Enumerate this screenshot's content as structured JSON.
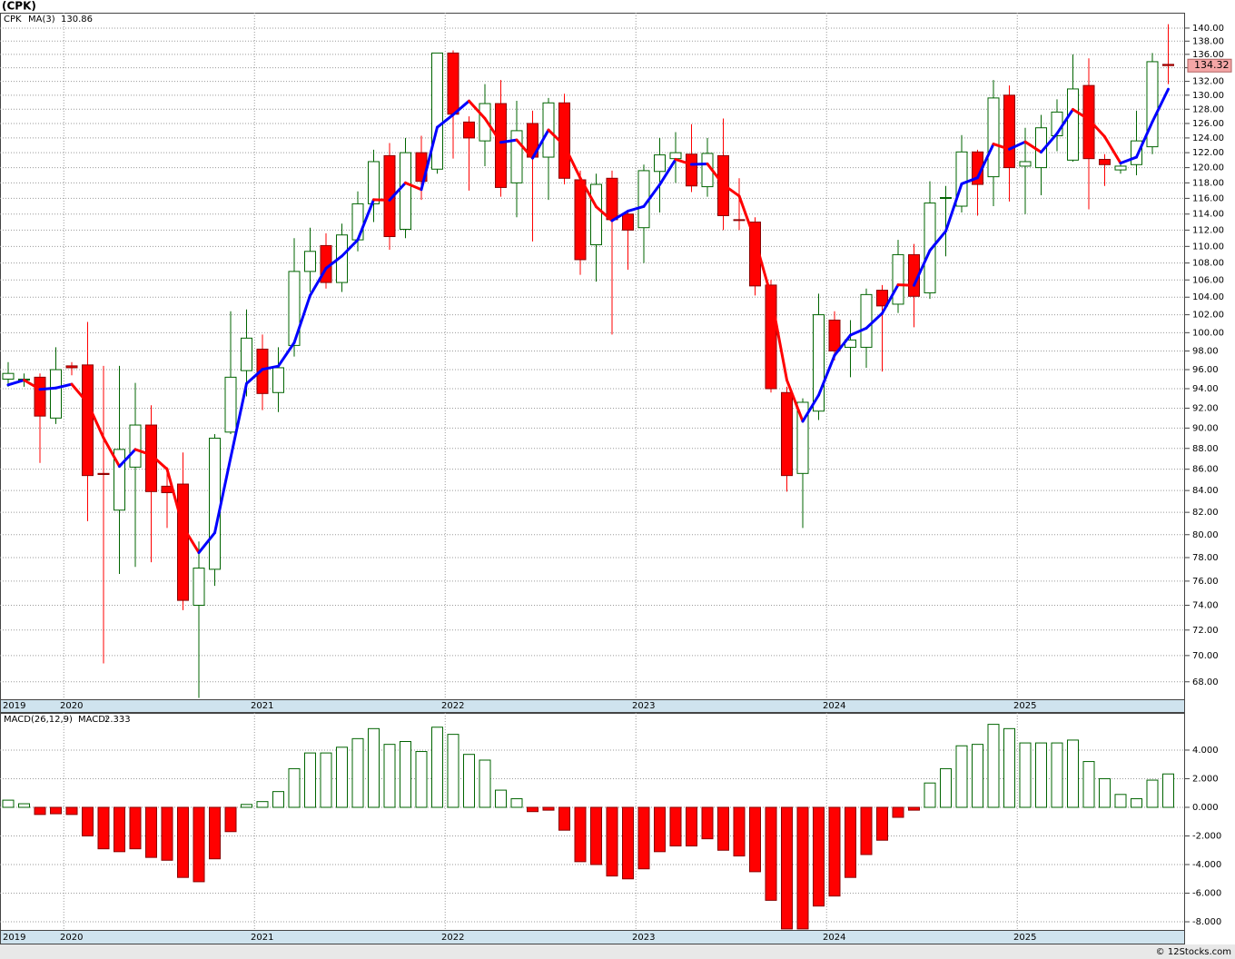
{
  "chart_data": [
    {
      "type": "candlestick",
      "title": "(CPK)",
      "symbol": "CPK",
      "log_scale": true,
      "grid": true,
      "up_color": "#006400",
      "down_color": "#ff0000",
      "last_price_color": "#f4a6a6",
      "categories": [
        "2019",
        null,
        null,
        null,
        "2020",
        null,
        null,
        null,
        null,
        null,
        null,
        null,
        null,
        null,
        null,
        null,
        "2021",
        null,
        null,
        null,
        null,
        null,
        null,
        null,
        null,
        null,
        null,
        null,
        "2022",
        null,
        null,
        null,
        null,
        null,
        null,
        null,
        null,
        null,
        null,
        null,
        "2023",
        null,
        null,
        null,
        null,
        null,
        null,
        null,
        null,
        null,
        null,
        null,
        "2024",
        null,
        null,
        null,
        null,
        null,
        null,
        null,
        null,
        null,
        null,
        null,
        "2025",
        null,
        null,
        null,
        null,
        null,
        null,
        null,
        null,
        null
      ],
      "open": [
        95.0,
        94.9,
        95.2,
        91.0,
        96.4,
        96.5,
        85.6,
        82.2,
        86.2,
        90.3,
        84.4,
        84.6,
        74.0,
        77.0,
        89.6,
        95.9,
        98.2,
        93.6,
        98.6,
        107.0,
        110.1,
        105.7,
        110.8,
        115.3,
        121.6,
        112.1,
        122.0,
        119.8,
        136.2,
        126.2,
        123.6,
        128.8,
        118.0,
        126.0,
        121.4,
        128.9,
        118.4,
        110.2,
        118.6,
        114.0,
        112.3,
        119.5,
        121.2,
        121.8,
        117.5,
        121.6,
        113.3,
        113.0,
        105.4,
        93.6,
        85.6,
        91.7,
        101.4,
        98.4,
        98.4,
        104.8,
        103.2,
        109.0,
        104.5,
        116.0,
        115.0,
        122.1,
        118.8,
        130.0,
        120.2,
        120.0,
        124.3,
        121.0,
        131.4,
        121.1,
        119.7,
        120.4,
        122.8,
        134.5
      ],
      "high": [
        96.8,
        95.6,
        95.6,
        98.4,
        96.8,
        101.2,
        96.4,
        96.4,
        94.6,
        92.3,
        86.2,
        87.6,
        79.4,
        89.4,
        102.4,
        102.6,
        99.8,
        98.4,
        111.0,
        112.3,
        111.6,
        112.8,
        116.9,
        122.4,
        123.3,
        124.0,
        124.3,
        136.2,
        136.6,
        127.0,
        131.6,
        132.2,
        129.2,
        127.8,
        129.6,
        130.2,
        119.6,
        119.2,
        119.6,
        114.5,
        120.4,
        124.0,
        124.8,
        125.9,
        124.0,
        126.7,
        118.6,
        113.6,
        106.0,
        94.2,
        93.0,
        104.4,
        102.4,
        101.4,
        105.0,
        105.4,
        110.8,
        110.3,
        118.2,
        117.6,
        124.4,
        122.4,
        132.2,
        131.4,
        125.4,
        127.2,
        129.4,
        136.0,
        135.4,
        121.8,
        120.6,
        127.8,
        136.2,
        140.6
      ],
      "low": [
        94.2,
        94.2,
        86.6,
        90.4,
        95.4,
        81.2,
        69.4,
        76.6,
        77.2,
        77.6,
        80.6,
        73.6,
        66.8,
        75.6,
        89.4,
        93.2,
        91.8,
        91.6,
        97.4,
        104.6,
        105.0,
        104.6,
        109.4,
        113.0,
        109.6,
        111.0,
        115.8,
        119.2,
        121.2,
        117.0,
        120.2,
        116.2,
        113.6,
        110.6,
        115.8,
        117.8,
        106.6,
        105.8,
        99.8,
        107.2,
        108.0,
        114.2,
        118.0,
        116.8,
        116.2,
        112.0,
        112.0,
        104.2,
        93.6,
        83.9,
        80.6,
        90.8,
        97.0,
        95.2,
        96.2,
        95.8,
        102.2,
        100.6,
        103.8,
        108.8,
        114.2,
        113.8,
        115.0,
        115.6,
        114.0,
        116.4,
        122.2,
        120.8,
        114.6,
        117.6,
        119.2,
        119.0,
        121.8,
        131.6
      ],
      "close": [
        95.6,
        95.0,
        91.2,
        96.0,
        96.2,
        85.4,
        85.5,
        87.9,
        90.3,
        83.9,
        83.8,
        74.4,
        77.1,
        89.0,
        95.2,
        99.4,
        93.5,
        96.2,
        107.0,
        109.4,
        105.7,
        111.4,
        115.3,
        120.8,
        111.2,
        122.0,
        118.2,
        136.2,
        127.3,
        124.0,
        128.8,
        117.4,
        125.0,
        121.4,
        128.9,
        118.6,
        108.4,
        117.8,
        113.3,
        112.0,
        119.6,
        121.7,
        122.0,
        117.6,
        121.9,
        113.8,
        113.2,
        105.3,
        94.0,
        85.4,
        92.6,
        102.0,
        98.0,
        99.2,
        104.3,
        103.0,
        109.0,
        104.1,
        115.4,
        116.1,
        122.1,
        117.8,
        129.6,
        120.0,
        120.8,
        125.4,
        127.6,
        130.9,
        121.2,
        120.4,
        120.2,
        123.6,
        134.9,
        134.32
      ],
      "series": [
        {
          "name": "MA(3)",
          "color": "#0000ff",
          "down_color": "#ff0000",
          "values": [
            94.4,
            94.9,
            93.93,
            94.07,
            94.47,
            92.53,
            89.03,
            86.27,
            87.9,
            87.37,
            86.0,
            80.7,
            78.43,
            80.17,
            87.1,
            94.53,
            96.03,
            96.37,
            98.9,
            104.2,
            107.37,
            108.83,
            110.8,
            115.83,
            115.77,
            118.0,
            117.13,
            125.47,
            127.23,
            129.17,
            126.7,
            123.4,
            123.73,
            121.27,
            125.1,
            122.97,
            118.63,
            114.93,
            113.17,
            114.37,
            114.97,
            117.77,
            121.1,
            120.43,
            120.5,
            117.77,
            116.3,
            110.77,
            104.17,
            94.9,
            90.67,
            93.33,
            97.53,
            99.73,
            100.5,
            102.17,
            105.43,
            105.37,
            109.5,
            111.87,
            117.87,
            118.67,
            123.17,
            122.47,
            123.47,
            122.07,
            124.6,
            127.97,
            126.57,
            124.17,
            120.6,
            121.4,
            126.23,
            130.86
          ]
        }
      ],
      "ylim": [
        66.7,
        142.4
      ],
      "yticks": [
        {
          "value": 68,
          "label": "68.00"
        },
        {
          "value": 70,
          "label": "70.00"
        },
        {
          "value": 72,
          "label": "72.00"
        },
        {
          "value": 74,
          "label": "74.00"
        },
        {
          "value": 76,
          "label": "76.00"
        },
        {
          "value": 78,
          "label": "78.00"
        },
        {
          "value": 80,
          "label": "80.00"
        },
        {
          "value": 82,
          "label": "82.00"
        },
        {
          "value": 84,
          "label": "84.00"
        },
        {
          "value": 86,
          "label": "86.00"
        },
        {
          "value": 88,
          "label": "88.00"
        },
        {
          "value": 90,
          "label": "90.00"
        },
        {
          "value": 92,
          "label": "92.00"
        },
        {
          "value": 94,
          "label": "94.00"
        },
        {
          "value": 96,
          "label": "96.00"
        },
        {
          "value": 98,
          "label": "98.00"
        },
        {
          "value": 100,
          "label": "100.00"
        },
        {
          "value": 102,
          "label": "102.00"
        },
        {
          "value": 104,
          "label": "104.00"
        },
        {
          "value": 106,
          "label": "106.00"
        },
        {
          "value": 108,
          "label": "108.00"
        },
        {
          "value": 110,
          "label": "110.00"
        },
        {
          "value": 112,
          "label": "112.00"
        },
        {
          "value": 114,
          "label": "114.00"
        },
        {
          "value": 116,
          "label": "116.00"
        },
        {
          "value": 118,
          "label": "118.00"
        },
        {
          "value": 120,
          "label": "120.00"
        },
        {
          "value": 122,
          "label": "122.00"
        },
        {
          "value": 124,
          "label": "124.00"
        },
        {
          "value": 126,
          "label": "126.00"
        },
        {
          "value": 128,
          "label": "128.00"
        },
        {
          "value": 130,
          "label": "130.00"
        },
        {
          "value": 132,
          "label": "132.00"
        },
        {
          "value": 134,
          "label": "134.00"
        },
        {
          "value": 136,
          "label": "136.00"
        },
        {
          "value": 138,
          "label": "138.00"
        },
        {
          "value": 140,
          "label": "140.00"
        }
      ]
    },
    {
      "type": "bar",
      "title": "MACD(26,12,9)",
      "grid": true,
      "up_color": "#006400",
      "down_color": "#ff0000",
      "categories": [
        "2019",
        null,
        null,
        null,
        "2020",
        null,
        null,
        null,
        null,
        null,
        null,
        null,
        null,
        null,
        null,
        null,
        "2021",
        null,
        null,
        null,
        null,
        null,
        null,
        null,
        null,
        null,
        null,
        null,
        "2022",
        null,
        null,
        null,
        null,
        null,
        null,
        null,
        null,
        null,
        null,
        null,
        "2023",
        null,
        null,
        null,
        null,
        null,
        null,
        null,
        null,
        null,
        null,
        null,
        "2024",
        null,
        null,
        null,
        null,
        null,
        null,
        null,
        null,
        null,
        null,
        null,
        "2025",
        null,
        null,
        null,
        null,
        null,
        null,
        null,
        null,
        null
      ],
      "series": [
        {
          "name": "MACD:",
          "color": "#0000ff",
          "values": [
            0.5,
            0.25,
            -0.5,
            -0.45,
            -0.5,
            -2.0,
            -2.9,
            -3.1,
            -2.9,
            -3.5,
            -3.7,
            -4.9,
            -5.2,
            -3.6,
            -1.7,
            0.2,
            0.4,
            1.1,
            2.7,
            3.8,
            3.8,
            4.2,
            4.8,
            5.5,
            4.4,
            4.6,
            3.9,
            5.6,
            5.1,
            3.7,
            3.3,
            1.2,
            0.6,
            -0.3,
            -0.2,
            -1.6,
            -3.8,
            -4.0,
            -4.8,
            -5.0,
            -4.3,
            -3.1,
            -2.7,
            -2.7,
            -2.2,
            -3.0,
            -3.4,
            -4.5,
            -6.5,
            -8.5,
            -8.5,
            -6.9,
            -6.2,
            -4.9,
            -3.3,
            -2.3,
            -0.7,
            -0.2,
            1.7,
            2.7,
            4.3,
            4.4,
            5.8,
            5.5,
            4.5,
            4.5,
            4.5,
            4.7,
            3.2,
            2.0,
            0.9,
            0.6,
            1.9,
            2.333
          ]
        }
      ],
      "ylim": [
        -8.57,
        6.6
      ],
      "yticks": [
        {
          "value": -8,
          "label": "-8.000"
        },
        {
          "value": -6,
          "label": "-6.000"
        },
        {
          "value": -4,
          "label": "-4.000"
        },
        {
          "value": -2,
          "label": "-2.000"
        },
        {
          "value": 0,
          "label": "0.000"
        },
        {
          "value": 2,
          "label": "2.000"
        },
        {
          "value": 4,
          "label": "4.000"
        }
      ]
    }
  ],
  "footer": "© 12Stocks.com"
}
